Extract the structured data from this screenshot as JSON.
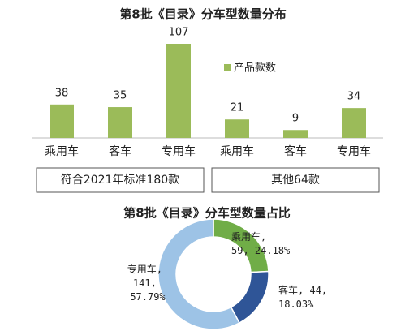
{
  "chart_data": [
    {
      "type": "bar",
      "title": "第8批《目录》分车型数量分布",
      "categories": [
        "乘用车",
        "客车",
        "专用车",
        "乘用车",
        "客车",
        "专用车"
      ],
      "groups": [
        "符合2021年标准180款",
        "其他64款"
      ],
      "series": [
        {
          "name": "产品款数",
          "color": "#9bbb59",
          "values": [
            38,
            35,
            107,
            21,
            9,
            34
          ]
        }
      ]
    },
    {
      "type": "donut",
      "title": "第8批《目录》分车型数量占比",
      "categories": [
        "乘用车",
        "客车",
        "专用车"
      ],
      "values": [
        59,
        44,
        141
      ],
      "value_labels": [
        "24.18%",
        "18.03%",
        "57.79%"
      ],
      "colors": [
        "#70ad47",
        "#2f5597",
        "#9dc3e6"
      ]
    }
  ]
}
